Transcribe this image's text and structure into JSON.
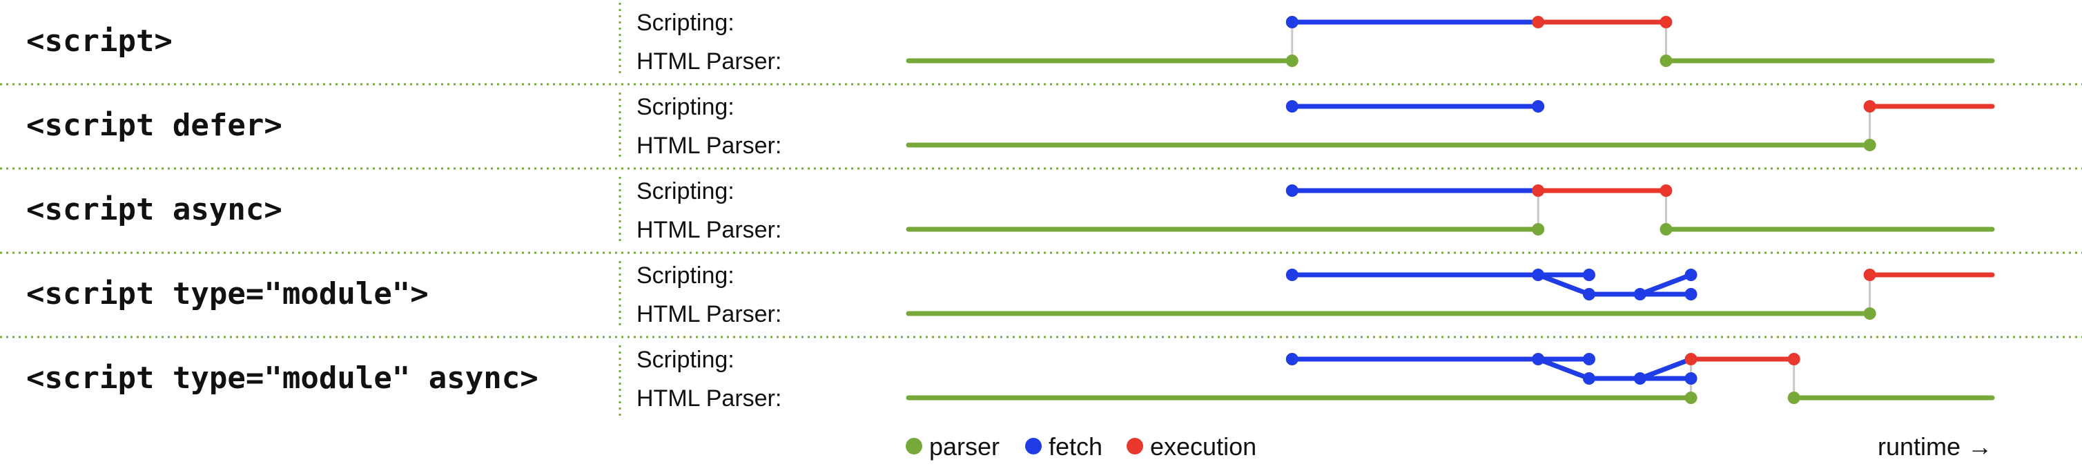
{
  "colors": {
    "parser": "#77a83a",
    "fetch": "#1f3ce6",
    "execution": "#e8382d",
    "separator": "#77a83a",
    "connector": "#c8c8c8"
  },
  "lane_labels": {
    "scripting": "Scripting:",
    "parser": "HTML Parser:"
  },
  "rows": [
    {
      "label": "<script>",
      "scripting": {
        "segments": [
          {
            "kind": "fetch",
            "from": 0.354,
            "to": 0.581
          },
          {
            "kind": "execution",
            "from": 0.581,
            "to": 0.699
          }
        ],
        "dots": [
          {
            "kind": "fetch",
            "at": 0.354
          },
          {
            "kind": "execution",
            "at": 0.581
          },
          {
            "kind": "execution",
            "at": 0.699
          }
        ]
      },
      "parser": {
        "segments": [
          {
            "kind": "parser",
            "from": 0.0,
            "to": 0.354
          },
          {
            "kind": "parser",
            "from": 0.699,
            "to": 1.0
          }
        ],
        "dots": [
          {
            "kind": "parser",
            "at": 0.354
          },
          {
            "kind": "parser",
            "at": 0.699
          }
        ]
      },
      "connectors": [
        0.354,
        0.699
      ]
    },
    {
      "label": "<script defer>",
      "scripting": {
        "segments": [
          {
            "kind": "fetch",
            "from": 0.354,
            "to": 0.581
          },
          {
            "kind": "execution",
            "from": 0.887,
            "to": 1.0
          }
        ],
        "dots": [
          {
            "kind": "fetch",
            "at": 0.354
          },
          {
            "kind": "fetch",
            "at": 0.581
          },
          {
            "kind": "execution",
            "at": 0.887
          }
        ]
      },
      "parser": {
        "segments": [
          {
            "kind": "parser",
            "from": 0.0,
            "to": 0.887
          }
        ],
        "dots": [
          {
            "kind": "parser",
            "at": 0.887
          }
        ]
      },
      "connectors": [
        0.887
      ]
    },
    {
      "label": "<script async>",
      "scripting": {
        "segments": [
          {
            "kind": "fetch",
            "from": 0.354,
            "to": 0.581
          },
          {
            "kind": "execution",
            "from": 0.581,
            "to": 0.699
          }
        ],
        "dots": [
          {
            "kind": "fetch",
            "at": 0.354
          },
          {
            "kind": "execution",
            "at": 0.581
          },
          {
            "kind": "execution",
            "at": 0.699
          }
        ]
      },
      "parser": {
        "segments": [
          {
            "kind": "parser",
            "from": 0.0,
            "to": 0.581
          },
          {
            "kind": "parser",
            "from": 0.699,
            "to": 1.0
          }
        ],
        "dots": [
          {
            "kind": "parser",
            "at": 0.581
          },
          {
            "kind": "parser",
            "at": 0.699
          }
        ]
      },
      "connectors": [
        0.581,
        0.699
      ]
    },
    {
      "label": "<script type=\"module\">",
      "scripting": {
        "segments": [
          {
            "kind": "fetch",
            "from": 0.354,
            "to": 0.581
          },
          {
            "kind": "fetch",
            "from": 0.581,
            "to": 0.628
          },
          {
            "kind": "execution",
            "from": 0.887,
            "to": 1.0
          }
        ],
        "dots": [
          {
            "kind": "fetch",
            "at": 0.354
          },
          {
            "kind": "fetch",
            "at": 0.581
          },
          {
            "kind": "fetch",
            "at": 0.628
          },
          {
            "kind": "fetch",
            "at": 0.722
          },
          {
            "kind": "execution",
            "at": 0.887
          }
        ]
      },
      "fetch_branch": {
        "from": 0.581,
        "to": 0.628,
        "low_end": 0.722,
        "rejoin_from": 0.675,
        "dots": [
          0.628,
          0.675,
          0.722
        ]
      },
      "parser": {
        "segments": [
          {
            "kind": "parser",
            "from": 0.0,
            "to": 0.887
          }
        ],
        "dots": [
          {
            "kind": "parser",
            "at": 0.887
          }
        ]
      },
      "connectors": [
        0.887
      ]
    },
    {
      "label": "<script type=\"module\" async>",
      "scripting": {
        "segments": [
          {
            "kind": "fetch",
            "from": 0.354,
            "to": 0.581
          },
          {
            "kind": "fetch",
            "from": 0.581,
            "to": 0.628
          },
          {
            "kind": "execution",
            "from": 0.722,
            "to": 0.817
          }
        ],
        "dots": [
          {
            "kind": "fetch",
            "at": 0.354
          },
          {
            "kind": "fetch",
            "at": 0.581
          },
          {
            "kind": "fetch",
            "at": 0.628
          },
          {
            "kind": "execution",
            "at": 0.722
          },
          {
            "kind": "execution",
            "at": 0.817
          }
        ]
      },
      "fetch_branch": {
        "from": 0.581,
        "to": 0.628,
        "low_end": 0.722,
        "rejoin_from": 0.675,
        "dots": [
          0.628,
          0.675,
          0.722
        ]
      },
      "parser": {
        "segments": [
          {
            "kind": "parser",
            "from": 0.0,
            "to": 0.722
          },
          {
            "kind": "parser",
            "from": 0.817,
            "to": 1.0
          }
        ],
        "dots": [
          {
            "kind": "parser",
            "at": 0.722
          },
          {
            "kind": "parser",
            "at": 0.817
          }
        ]
      },
      "connectors": [
        0.722,
        0.817
      ]
    }
  ],
  "legend": {
    "items": [
      {
        "kind": "parser",
        "label": "parser"
      },
      {
        "kind": "fetch",
        "label": "fetch"
      },
      {
        "kind": "execution",
        "label": "execution"
      }
    ],
    "runtime_label": "runtime →"
  }
}
